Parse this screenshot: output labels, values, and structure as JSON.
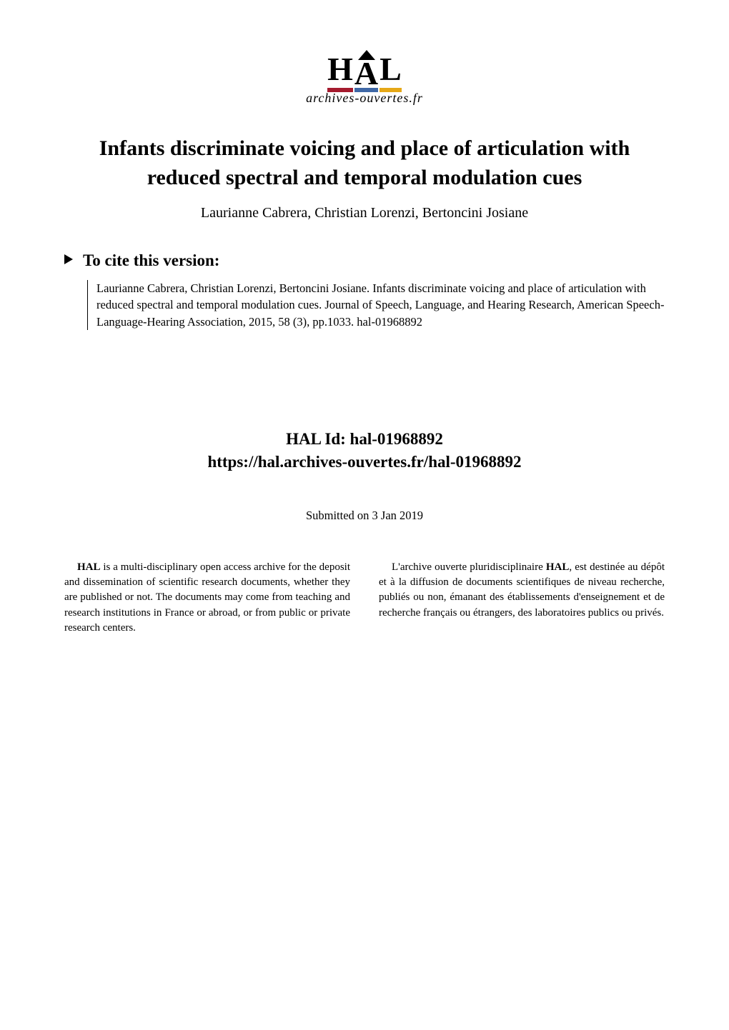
{
  "logo": {
    "letters": [
      "H",
      "A",
      "L"
    ],
    "bar_colors": [
      "#a51b2e",
      "#3f68a6",
      "#e6a817"
    ],
    "brand_text": "archives-ouvertes.fr",
    "letter_color": "#000000",
    "letter_fontsize": 46,
    "brand_fontsize": 18
  },
  "title": "Infants discriminate voicing and place of articulation with reduced spectral and temporal modulation cues",
  "authors": "Laurianne Cabrera, Christian Lorenzi, Bertoncini Josiane",
  "cite": {
    "heading": "To cite this version:",
    "body": "Laurianne Cabrera, Christian Lorenzi, Bertoncini Josiane.  Infants discriminate voicing and place of articulation with reduced spectral and temporal modulation cues.  Journal of Speech, Language, and Hearing Research, American Speech-Language-Hearing Association, 2015, 58 (3), pp.1033.  hal-01968892"
  },
  "halid": {
    "label": "HAL Id:  hal-01968892",
    "url": "https://hal.archives-ouvertes.fr/hal-01968892"
  },
  "submitted": "Submitted on 3 Jan 2019",
  "footer": {
    "left": "HAL is a multi-disciplinary open access archive for the deposit and dissemination of scientific research documents, whether they are published or not.  The documents may come from teaching and research institutions in France or abroad, or from public or private research centers.",
    "left_bold_lead": "HAL",
    "right": "L'archive ouverte pluridisciplinaire HAL, est destinée au dépôt et à la diffusion de documents scientifiques de niveau recherche, publiés ou non, émanant des établissements d'enseignement et de recherche français ou étrangers, des laboratoires publics ou privés.",
    "right_bold_word": "HAL"
  },
  "colors": {
    "text": "#000000",
    "background": "#ffffff"
  },
  "fonts": {
    "title_pt": 30,
    "authors_pt": 20,
    "cite_heading_pt": 23,
    "cite_body_pt": 16.5,
    "halid_pt": 23,
    "submitted_pt": 16.5,
    "footer_pt": 15
  }
}
